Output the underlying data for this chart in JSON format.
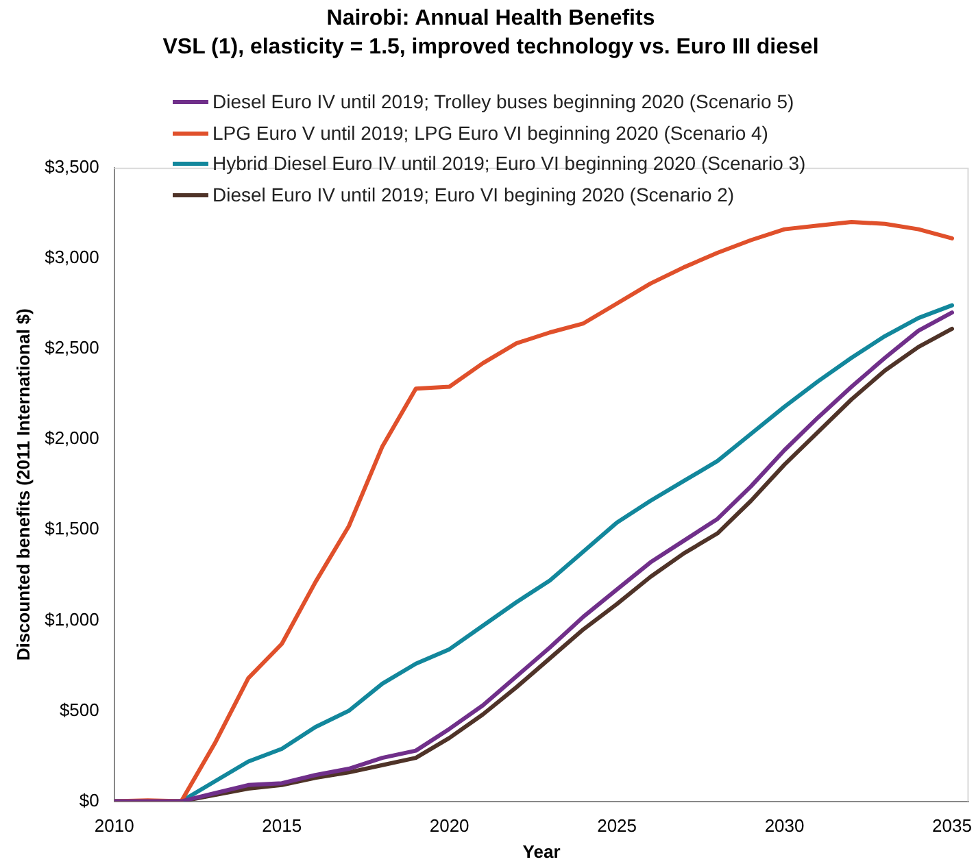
{
  "chart_data": {
    "type": "line",
    "title": "Nairobi: Annual Health Benefits",
    "subtitle": "VSL (1), elasticity = 1.5, improved technology vs. Euro III diesel",
    "xlabel": "Year",
    "ylabel": "Discounted benefits (2011 International $)",
    "x": [
      2010,
      2011,
      2012,
      2013,
      2014,
      2015,
      2016,
      2017,
      2018,
      2019,
      2020,
      2021,
      2022,
      2023,
      2024,
      2025,
      2026,
      2027,
      2028,
      2029,
      2030,
      2031,
      2032,
      2033,
      2034,
      2035
    ],
    "series": [
      {
        "name": "Diesel Euro IV until 2019; Trolley buses beginning 2020 (Scenario 5)",
        "color": "#702f8a",
        "values": [
          0,
          0,
          0,
          45,
          90,
          100,
          145,
          180,
          240,
          280,
          400,
          530,
          690,
          850,
          1020,
          1170,
          1320,
          1440,
          1560,
          1740,
          1940,
          2120,
          2290,
          2450,
          2600,
          2700
        ]
      },
      {
        "name": "LPG Euro V until 2019; LPG Euro VI beginning 2020 (Scenario 4)",
        "color": "#e0502b",
        "values": [
          0,
          5,
          0,
          320,
          680,
          870,
          1210,
          1520,
          1960,
          2280,
          2290,
          2420,
          2530,
          2590,
          2640,
          2750,
          2860,
          2950,
          3030,
          3100,
          3160,
          3180,
          3200,
          3190,
          3160,
          3110
        ]
      },
      {
        "name": "Hybrid Diesel Euro IV until 2019; Euro VI beginning 2020 (Scenario 3)",
        "color": "#12879c",
        "values": [
          0,
          0,
          0,
          110,
          220,
          290,
          410,
          500,
          650,
          760,
          840,
          970,
          1100,
          1220,
          1380,
          1540,
          1660,
          1770,
          1880,
          2030,
          2180,
          2320,
          2450,
          2570,
          2670,
          2740
        ]
      },
      {
        "name": "Diesel Euro IV until 2019; Euro VI begining 2020 (Scenario 2)",
        "color": "#4f3328",
        "values": [
          0,
          0,
          0,
          35,
          70,
          90,
          130,
          160,
          200,
          240,
          350,
          480,
          630,
          790,
          950,
          1090,
          1240,
          1370,
          1480,
          1660,
          1860,
          2040,
          2220,
          2380,
          2510,
          2610
        ]
      }
    ],
    "xlim": [
      2010,
      2035.5
    ],
    "xticks": [
      2010,
      2015,
      2020,
      2025,
      2030,
      2035
    ],
    "ylim": [
      0,
      3500
    ],
    "yticks": [
      {
        "value": 0,
        "label": "$0"
      },
      {
        "value": 500,
        "label": "$500"
      },
      {
        "value": 1000,
        "label": "$1,000"
      },
      {
        "value": 1500,
        "label": "$1,500"
      },
      {
        "value": 2000,
        "label": "$2,000"
      },
      {
        "value": 2500,
        "label": "$2,500"
      },
      {
        "value": 3000,
        "label": "$3,000"
      },
      {
        "value": 3500,
        "label": "$3,500"
      }
    ],
    "grid": false,
    "legend": "top left",
    "marker": "none",
    "line_style": "solid"
  }
}
